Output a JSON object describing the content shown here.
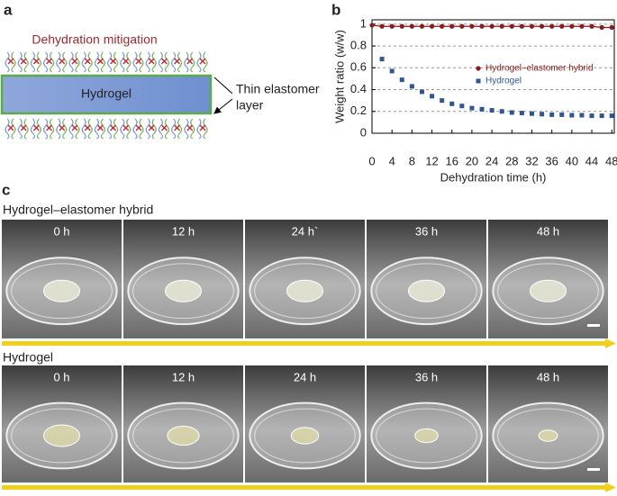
{
  "panel_a": {
    "label": "a",
    "top_text": "Dehydration mitigation",
    "center_text": "Hydrogel",
    "side_text": [
      "Thin elastomer",
      "layer"
    ]
  },
  "chart_data": {
    "type": "scatter",
    "panel_label": "b",
    "x_label": "Dehydration time (h)",
    "y_label": "Weight ratio (w/w)",
    "x": [
      0,
      2,
      4,
      6,
      8,
      10,
      12,
      14,
      16,
      18,
      20,
      22,
      24,
      26,
      28,
      30,
      32,
      34,
      36,
      38,
      40,
      42,
      44,
      46,
      48
    ],
    "series": [
      {
        "name": "Hydrogel–elastomer hybrid",
        "color": "#8b1a1a",
        "marker": "circle",
        "line": true,
        "values": [
          0.99,
          0.98,
          0.98,
          0.98,
          0.98,
          0.98,
          0.98,
          0.98,
          0.98,
          0.98,
          0.98,
          0.98,
          0.98,
          0.98,
          0.98,
          0.98,
          0.98,
          0.98,
          0.98,
          0.98,
          0.98,
          0.98,
          0.98,
          0.97,
          0.97
        ]
      },
      {
        "name": "Hydrogel",
        "color": "#2f5597",
        "marker": "square",
        "line": false,
        "values": [
          null,
          0.68,
          0.57,
          0.49,
          0.43,
          0.38,
          0.34,
          0.3,
          0.27,
          0.25,
          0.23,
          0.22,
          0.21,
          0.2,
          0.19,
          0.185,
          0.18,
          0.175,
          0.17,
          0.17,
          0.165,
          0.165,
          0.16,
          0.16,
          0.16
        ]
      }
    ],
    "xlim": [
      0,
      48.5
    ],
    "ylim": [
      0,
      1.04
    ],
    "xticks": [
      0,
      4,
      8,
      12,
      16,
      20,
      24,
      28,
      32,
      36,
      40,
      44,
      48
    ],
    "yticks": [
      0,
      0.2,
      0.4,
      0.6,
      0.8,
      1
    ],
    "grid": true,
    "legend": "right"
  },
  "panel_c": {
    "label": "c",
    "rows": [
      {
        "title": "Hydrogel–elastomer hybrid",
        "times": [
          "0 h",
          "12 h",
          "24 h`",
          "36 h",
          "48 h"
        ]
      },
      {
        "title": "Hydrogel",
        "times": [
          "0 h",
          "12 h",
          "24 h",
          "36 h",
          "48 h"
        ]
      }
    ]
  }
}
